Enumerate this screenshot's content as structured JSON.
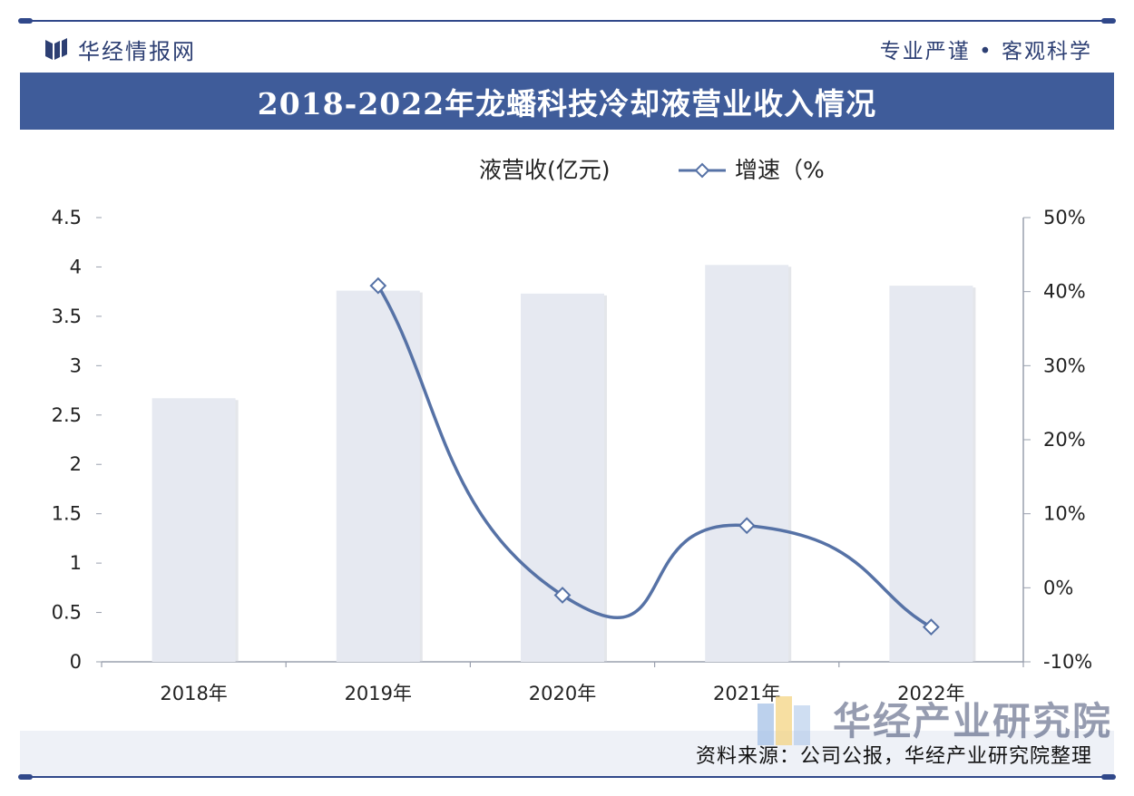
{
  "header": {
    "brand_name": "华经情报网",
    "slogan": "专业严谨 • 客观科学",
    "title": "2018-2022年龙蟠科技冷却液营业收入情况"
  },
  "footer": {
    "source": "资料来源：公司公报，华经产业研究院整理",
    "watermark": "华经产业研究院"
  },
  "colors": {
    "bar": "#e6e9f1",
    "line": "#5672a6",
    "title_bar": "#3f5c9a",
    "accent": "#30488a"
  },
  "chart_data": {
    "type": "bar",
    "categories": [
      "2018年",
      "2019年",
      "2020年",
      "2021年",
      "2022年"
    ],
    "series": [
      {
        "name": "液营收(亿元)",
        "type": "bar",
        "axis": "left",
        "values": [
          2.67,
          3.76,
          3.73,
          4.02,
          3.81
        ]
      },
      {
        "name": "增速（%",
        "type": "line",
        "axis": "right",
        "values": [
          null,
          40.8,
          -1.0,
          8.4,
          -5.3
        ]
      }
    ],
    "y_left": {
      "min": 0,
      "max": 4.5,
      "ticks": [
        "0",
        "0.5",
        "1",
        "1.5",
        "2",
        "2.5",
        "3",
        "3.5",
        "4",
        "4.5"
      ]
    },
    "y_right": {
      "min": -10,
      "max": 50,
      "ticks": [
        "-10%",
        "0%",
        "10%",
        "20%",
        "30%",
        "40%",
        "50%"
      ]
    },
    "legend_position": "top-center",
    "grid": false
  }
}
